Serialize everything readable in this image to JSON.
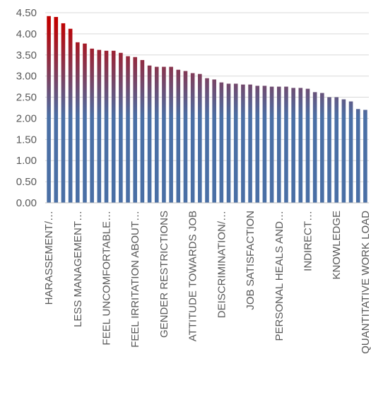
{
  "chart_data": {
    "type": "bar",
    "categories": [
      "HARASSEMENT/…",
      null,
      null,
      null,
      "LESS MANAGEMENT…",
      null,
      null,
      null,
      "FEEL UNCOMFORTABLE…",
      null,
      null,
      null,
      "FEEL IRRITATION ABOUT…",
      null,
      null,
      null,
      "GENDER RESTRICTIONS",
      null,
      null,
      null,
      "ATTITUDE TOWARDS JOB",
      null,
      null,
      null,
      "DEISCRIMINATION/…",
      null,
      null,
      null,
      "JOB SATISFACTION",
      null,
      null,
      null,
      "PERSONAL HEALS AND…",
      null,
      null,
      null,
      "INDIRECT…",
      null,
      null,
      null,
      "KNOWLEDGE",
      null,
      null,
      null,
      "QUANTITATIVE WORK LOAD"
    ],
    "values": [
      4.42,
      4.4,
      4.25,
      4.12,
      3.8,
      3.77,
      3.65,
      3.62,
      3.6,
      3.6,
      3.55,
      3.47,
      3.45,
      3.38,
      3.25,
      3.22,
      3.22,
      3.22,
      3.15,
      3.12,
      3.07,
      3.05,
      2.95,
      2.92,
      2.85,
      2.82,
      2.82,
      2.8,
      2.8,
      2.77,
      2.77,
      2.75,
      2.75,
      2.75,
      2.72,
      2.72,
      2.7,
      2.62,
      2.6,
      2.5,
      2.5,
      2.45,
      2.4,
      2.22,
      2.2
    ],
    "color_top": "#c00000",
    "color_bottom": "#4a6fa5",
    "ylim": [
      0,
      4.5
    ],
    "yticks": [
      {
        "value": 0,
        "label": "0.00"
      },
      {
        "value": 0.5,
        "label": "0.50"
      },
      {
        "value": 1,
        "label": "1.00"
      },
      {
        "value": 1.5,
        "label": "1.50"
      },
      {
        "value": 2,
        "label": "2.00"
      },
      {
        "value": 2.5,
        "label": "2.50"
      },
      {
        "value": 3,
        "label": "3.00"
      },
      {
        "value": 3.5,
        "label": "3.50"
      },
      {
        "value": 4,
        "label": "4.00"
      },
      {
        "value": 4.5,
        "label": "4.50"
      }
    ],
    "grid": true
  }
}
